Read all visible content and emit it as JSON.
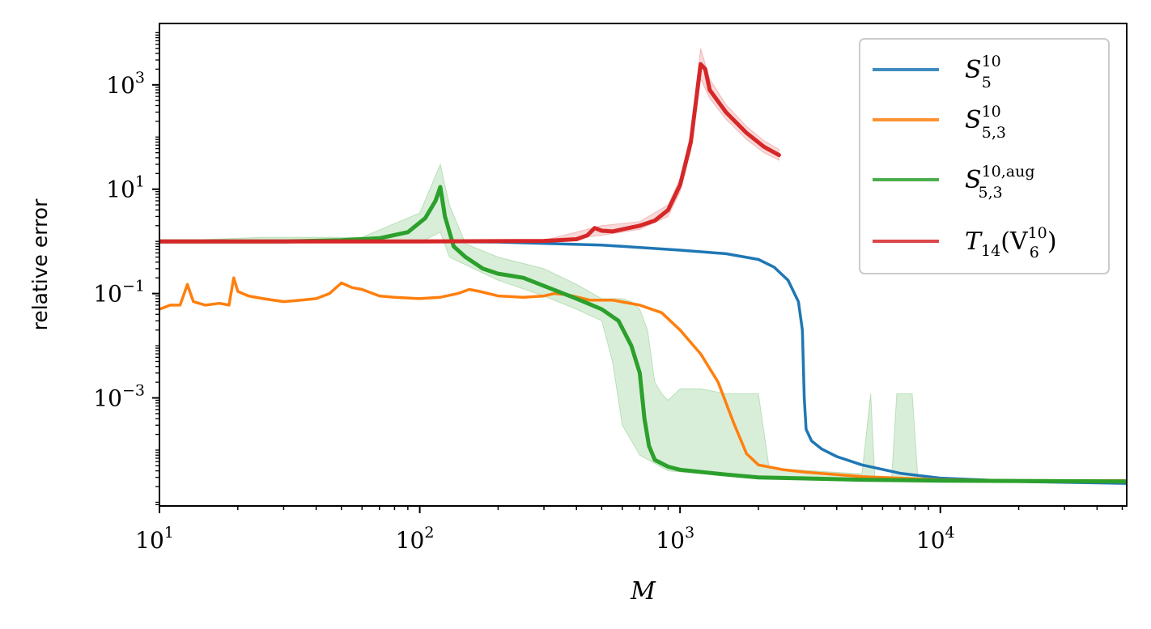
{
  "chart_data": {
    "type": "line",
    "title": "",
    "xlabel": "M",
    "ylabel": "relative error",
    "xscale": "log",
    "yscale": "log",
    "xlim": [
      10,
      52000
    ],
    "ylim": [
      8.5e-06,
      15000
    ],
    "xticks": [
      {
        "value": 10,
        "base": "10",
        "exp": "1"
      },
      {
        "value": 100,
        "base": "10",
        "exp": "2"
      },
      {
        "value": 1000,
        "base": "10",
        "exp": "3"
      },
      {
        "value": 10000,
        "base": "10",
        "exp": "4"
      }
    ],
    "yticks": [
      {
        "value": 0.001,
        "base": "10",
        "exp": "−3"
      },
      {
        "value": 0.1,
        "base": "10",
        "exp": "−1"
      },
      {
        "value": 10,
        "base": "10",
        "exp": "1"
      },
      {
        "value": 1000,
        "base": "10",
        "exp": "3"
      }
    ],
    "legend_position": "top-right",
    "series": [
      {
        "name": "S_5^10",
        "legend_main": "S",
        "legend_sub": "5",
        "legend_sup": "10",
        "color": "#1f77b4",
        "points": [
          [
            10,
            1.0
          ],
          [
            100,
            0.99
          ],
          [
            200,
            0.97
          ],
          [
            500,
            0.85
          ],
          [
            1000,
            0.68
          ],
          [
            1500,
            0.58
          ],
          [
            2000,
            0.45
          ],
          [
            2300,
            0.32
          ],
          [
            2600,
            0.18
          ],
          [
            2850,
            0.07
          ],
          [
            2950,
            0.02
          ],
          [
            3000,
            0.001
          ],
          [
            3050,
            0.00025
          ],
          [
            3200,
            0.00015
          ],
          [
            3500,
            0.000105
          ],
          [
            4000,
            7.5e-05
          ],
          [
            5000,
            5.2e-05
          ],
          [
            7000,
            3.6e-05
          ],
          [
            10000,
            2.9e-05
          ],
          [
            20000,
            2.5e-05
          ],
          [
            52000,
            2.3e-05
          ]
        ]
      },
      {
        "name": "S_5,3^10",
        "legend_main": "S",
        "legend_sub": "5,3",
        "legend_sup": "10",
        "color": "#ff7f0e",
        "points": [
          [
            10,
            0.05
          ],
          [
            11,
            0.06
          ],
          [
            12,
            0.06
          ],
          [
            12.8,
            0.15
          ],
          [
            13.5,
            0.07
          ],
          [
            15,
            0.06
          ],
          [
            17,
            0.065
          ],
          [
            18.5,
            0.06
          ],
          [
            19.3,
            0.2
          ],
          [
            20,
            0.11
          ],
          [
            22,
            0.09
          ],
          [
            25,
            0.08
          ],
          [
            30,
            0.07
          ],
          [
            35,
            0.075
          ],
          [
            40,
            0.08
          ],
          [
            45,
            0.1
          ],
          [
            50,
            0.16
          ],
          [
            55,
            0.13
          ],
          [
            60,
            0.12
          ],
          [
            70,
            0.09
          ],
          [
            80,
            0.085
          ],
          [
            100,
            0.08
          ],
          [
            120,
            0.085
          ],
          [
            140,
            0.1
          ],
          [
            155,
            0.12
          ],
          [
            170,
            0.11
          ],
          [
            200,
            0.09
          ],
          [
            250,
            0.085
          ],
          [
            300,
            0.09
          ],
          [
            330,
            0.1
          ],
          [
            370,
            0.095
          ],
          [
            450,
            0.075
          ],
          [
            550,
            0.075
          ],
          [
            700,
            0.06
          ],
          [
            850,
            0.043
          ],
          [
            1000,
            0.02
          ],
          [
            1200,
            0.007
          ],
          [
            1400,
            0.002
          ],
          [
            1600,
            0.00035
          ],
          [
            1800,
            8.5e-05
          ],
          [
            2000,
            5.2e-05
          ],
          [
            2500,
            4.2e-05
          ],
          [
            3000,
            3.8e-05
          ],
          [
            5000,
            3.1e-05
          ],
          [
            10000,
            2.7e-05
          ],
          [
            20000,
            2.6e-05
          ],
          [
            52000,
            2.6e-05
          ]
        ]
      },
      {
        "name": "S_5,3^10,aug",
        "legend_main": "S",
        "legend_sub": "5,3",
        "legend_sup": "10,aug",
        "color": "#2ca02c",
        "points": [
          [
            10,
            1.0
          ],
          [
            30,
            1.0
          ],
          [
            50,
            1.05
          ],
          [
            70,
            1.15
          ],
          [
            90,
            1.5
          ],
          [
            105,
            2.8
          ],
          [
            115,
            6.0
          ],
          [
            120,
            11.0
          ],
          [
            125,
            3.0
          ],
          [
            135,
            0.8
          ],
          [
            150,
            0.5
          ],
          [
            175,
            0.3
          ],
          [
            200,
            0.24
          ],
          [
            250,
            0.2
          ],
          [
            300,
            0.14
          ],
          [
            400,
            0.08
          ],
          [
            500,
            0.05
          ],
          [
            580,
            0.03
          ],
          [
            650,
            0.01
          ],
          [
            700,
            0.003
          ],
          [
            730,
            0.0004
          ],
          [
            760,
            0.00012
          ],
          [
            800,
            6.5e-05
          ],
          [
            900,
            4.8e-05
          ],
          [
            1000,
            4.2e-05
          ],
          [
            1500,
            3.4e-05
          ],
          [
            2000,
            3e-05
          ],
          [
            5000,
            2.7e-05
          ],
          [
            10000,
            2.6e-05
          ],
          [
            52000,
            2.5e-05
          ]
        ],
        "band_upper": [
          [
            10,
            1.0
          ],
          [
            25,
            1.2
          ],
          [
            40,
            1.2
          ],
          [
            60,
            1.2
          ],
          [
            100,
            3.5
          ],
          [
            120,
            30.0
          ],
          [
            130,
            5.0
          ],
          [
            150,
            0.9
          ],
          [
            200,
            0.5
          ],
          [
            300,
            0.3
          ],
          [
            400,
            0.15
          ],
          [
            500,
            0.08
          ],
          [
            600,
            0.08
          ],
          [
            650,
            0.07
          ],
          [
            700,
            0.05
          ],
          [
            750,
            0.02
          ],
          [
            800,
            0.002
          ],
          [
            850,
            0.0012
          ],
          [
            900,
            0.0009
          ],
          [
            1000,
            0.0015
          ],
          [
            1100,
            0.0015
          ],
          [
            1200,
            0.0015
          ],
          [
            1500,
            0.0012
          ],
          [
            2000,
            0.0012
          ],
          [
            2200,
            4.5e-05
          ],
          [
            5000,
            3.5e-05
          ],
          [
            5400,
            0.0012
          ],
          [
            5600,
            3e-05
          ],
          [
            6500,
            3e-05
          ],
          [
            6800,
            0.0012
          ],
          [
            7800,
            0.0012
          ],
          [
            8200,
            2.8e-05
          ],
          [
            52000,
            2.7e-05
          ]
        ],
        "band_lower": [
          [
            10,
            0.95
          ],
          [
            100,
            0.95
          ],
          [
            120,
            1.5
          ],
          [
            130,
            0.5
          ],
          [
            200,
            0.18
          ],
          [
            300,
            0.09
          ],
          [
            400,
            0.05
          ],
          [
            500,
            0.03
          ],
          [
            550,
            0.005
          ],
          [
            600,
            0.0003
          ],
          [
            700,
            8e-05
          ],
          [
            900,
            4e-05
          ],
          [
            2000,
            2.8e-05
          ],
          [
            52000,
            2.4e-05
          ]
        ]
      },
      {
        "name": "T_14(V_6^10)",
        "legend_main": "T",
        "legend_sub": "14",
        "legend_paren_open": "(V",
        "legend_sub2": "6",
        "legend_sup2": "10",
        "legend_paren_close": ")",
        "color": "#d62728",
        "points": [
          [
            10,
            1.0
          ],
          [
            100,
            1.0
          ],
          [
            300,
            1.02
          ],
          [
            400,
            1.1
          ],
          [
            440,
            1.3
          ],
          [
            470,
            1.8
          ],
          [
            500,
            1.6
          ],
          [
            550,
            1.55
          ],
          [
            600,
            1.7
          ],
          [
            700,
            2.0
          ],
          [
            800,
            2.5
          ],
          [
            900,
            4.0
          ],
          [
            1000,
            12.0
          ],
          [
            1100,
            80.0
          ],
          [
            1200,
            2500.0
          ],
          [
            1250,
            2000.0
          ],
          [
            1300,
            800.0
          ],
          [
            1500,
            300.0
          ],
          [
            1800,
            120.0
          ],
          [
            2100,
            65.0
          ],
          [
            2400,
            45.0
          ]
        ],
        "band_upper": [
          [
            10,
            1.02
          ],
          [
            300,
            1.05
          ],
          [
            500,
            2.0
          ],
          [
            700,
            2.4
          ],
          [
            900,
            5.0
          ],
          [
            1000,
            16.0
          ],
          [
            1100,
            120.0
          ],
          [
            1200,
            5000.0
          ],
          [
            1300,
            1300.0
          ],
          [
            1500,
            420.0
          ],
          [
            1800,
            160.0
          ],
          [
            2100,
            85.0
          ],
          [
            2400,
            58.0
          ]
        ],
        "band_lower": [
          [
            10,
            0.98
          ],
          [
            300,
            1.0
          ],
          [
            500,
            1.3
          ],
          [
            700,
            1.7
          ],
          [
            900,
            3.0
          ],
          [
            1000,
            9.0
          ],
          [
            1100,
            55.0
          ],
          [
            1200,
            1300.0
          ],
          [
            1300,
            550.0
          ],
          [
            1500,
            220.0
          ],
          [
            1800,
            90.0
          ],
          [
            2100,
            50.0
          ],
          [
            2400,
            36.0
          ]
        ]
      }
    ]
  }
}
